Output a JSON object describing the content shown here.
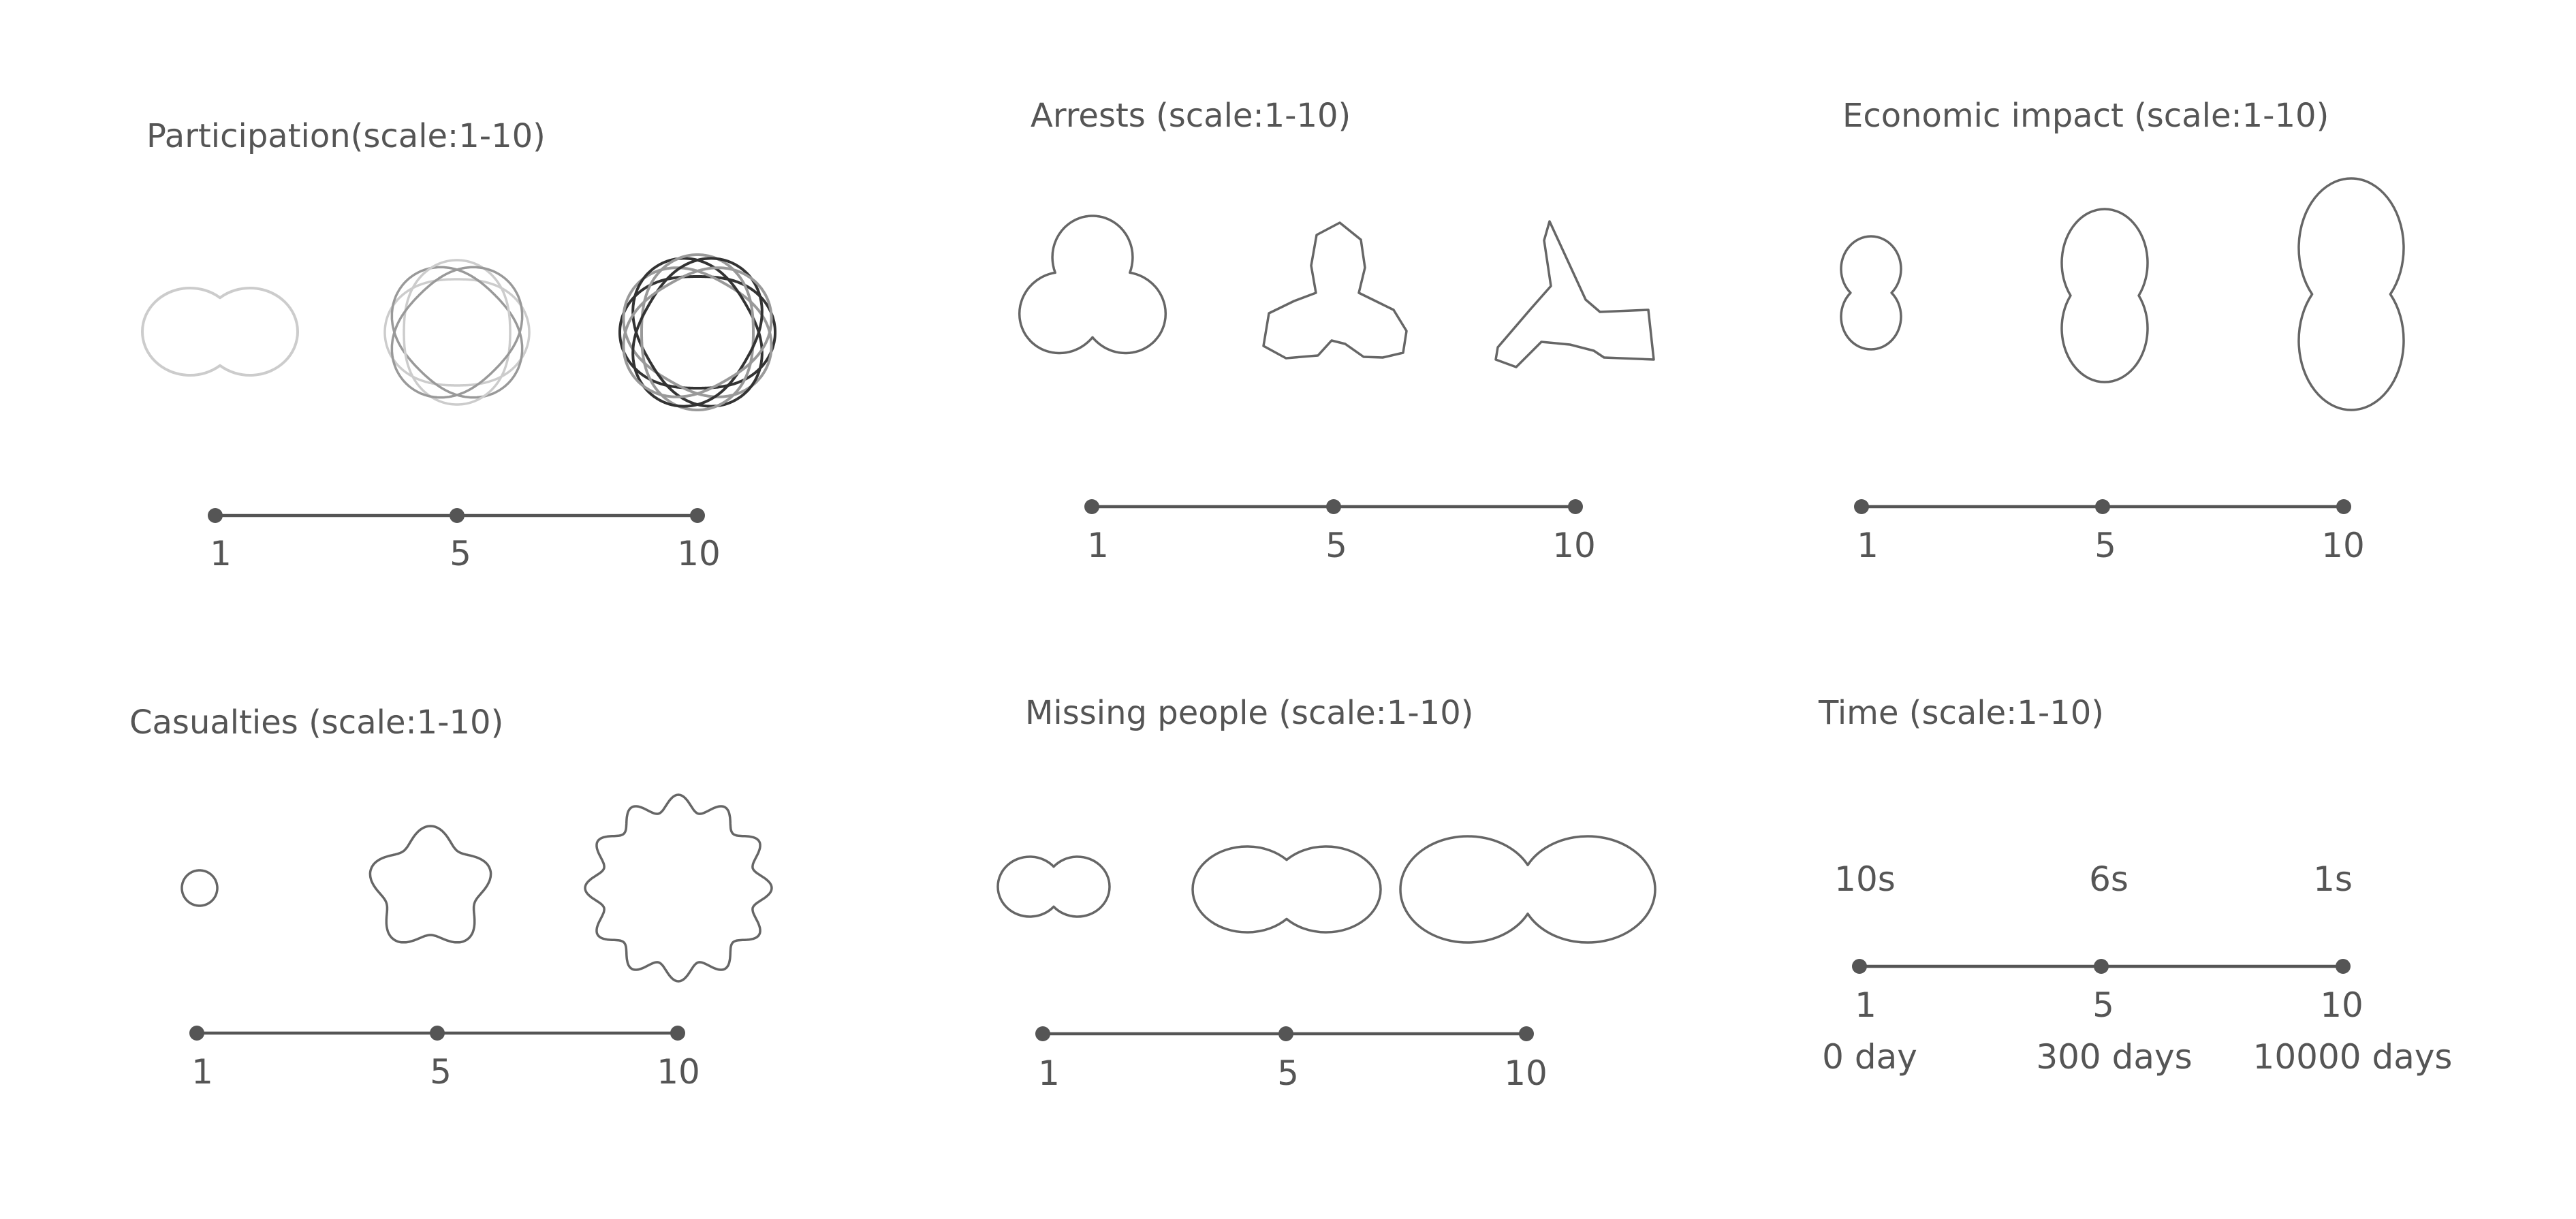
{
  "panels": [
    {
      "id": "participation",
      "title": "Participation(scale:1-10)",
      "ticks": [
        "1",
        "5",
        "10"
      ]
    },
    {
      "id": "arrests",
      "title": "Arrests (scale:1-10)",
      "ticks": [
        "1",
        "5",
        "10"
      ]
    },
    {
      "id": "economic",
      "title": "Economic impact (scale:1-10)",
      "ticks": [
        "1",
        "5",
        "10"
      ]
    },
    {
      "id": "casualties",
      "title": "Casualties (scale:1-10)",
      "ticks": [
        "1",
        "5",
        "10"
      ]
    },
    {
      "id": "missing",
      "title": "Missing people (scale:1-10)",
      "ticks": [
        "1",
        "5",
        "10"
      ]
    },
    {
      "id": "time",
      "title": "Time (scale:1-10)",
      "ticks": [
        "1",
        "5",
        "10"
      ],
      "durations": [
        "10s",
        "6s",
        "1s"
      ],
      "days": [
        "0 day",
        "300 days",
        "10000 days"
      ]
    }
  ],
  "colors": {
    "text": "#555555",
    "glyph": "#666666",
    "faint": "#cccccc",
    "mid": "#999999",
    "dark": "#333333"
  }
}
